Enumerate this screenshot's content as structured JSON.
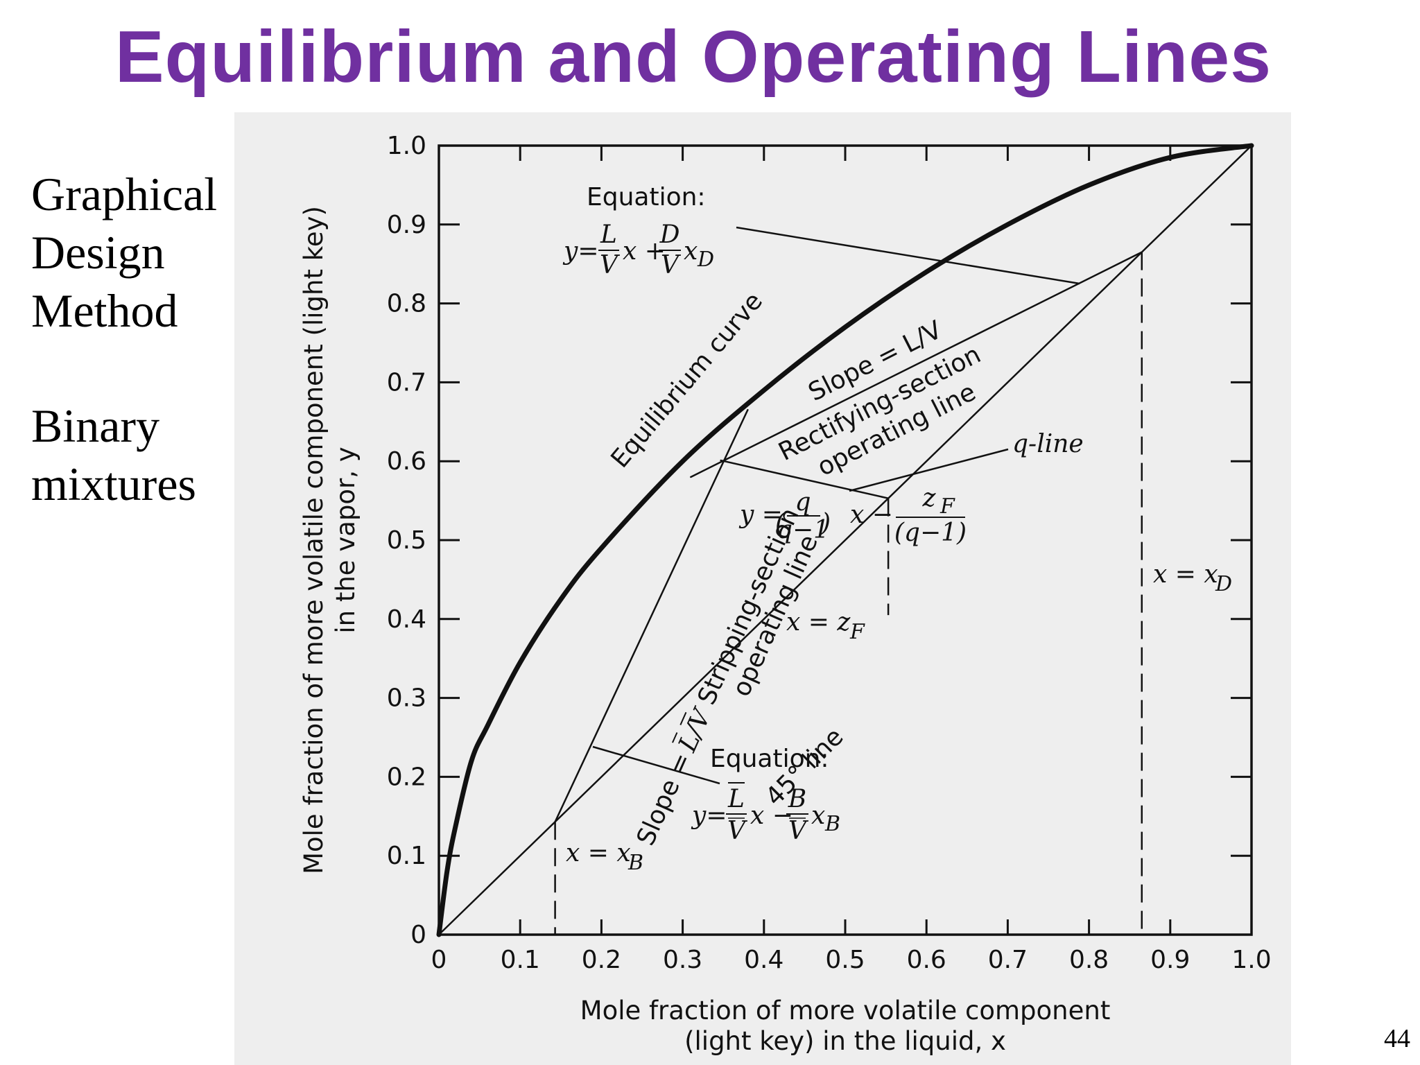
{
  "slide": {
    "title": "Equilibrium and Operating Lines",
    "side_text_1": [
      "Graphical",
      "Design",
      "Method"
    ],
    "side_text_2": [
      "Binary",
      "mixtures"
    ],
    "page_number": "44"
  },
  "chart_data": {
    "type": "line",
    "xlabel": [
      "Mole fraction of more volatile component",
      "(light key) in the liquid, x"
    ],
    "ylabel": [
      "Mole fraction of more volatile component (light key)",
      "in the vapor, y"
    ],
    "xlim": [
      0,
      1.0
    ],
    "ylim": [
      0,
      1.0
    ],
    "x_tick_labels": [
      "0",
      "0.1",
      "0.2",
      "0.3",
      "0.4",
      "0.5",
      "0.6",
      "0.7",
      "0.8",
      "0.9",
      "1.0"
    ],
    "y_tick_labels": [
      "0",
      "0.1",
      "0.2",
      "0.3",
      "0.4",
      "0.5",
      "0.6",
      "0.7",
      "0.8",
      "0.9",
      "1.0"
    ],
    "grid": false,
    "series": [
      {
        "key": "equilibrium",
        "x": [
          0,
          0.01,
          0.02,
          0.04,
          0.06,
          0.1,
          0.15,
          0.2,
          0.3,
          0.4,
          0.5,
          0.6,
          0.7,
          0.8,
          0.9,
          1.0
        ],
        "y": [
          0,
          0.08,
          0.135,
          0.22,
          0.265,
          0.345,
          0.425,
          0.49,
          0.6,
          0.69,
          0.77,
          0.84,
          0.9,
          0.95,
          0.985,
          1.0
        ]
      },
      {
        "key": "diagonal",
        "x": [
          0,
          1.0
        ],
        "y": [
          0,
          1.0
        ]
      },
      {
        "key": "rectifying",
        "x": [
          0.31,
          0.865
        ],
        "y": [
          0.58,
          0.865
        ]
      },
      {
        "key": "stripping",
        "x": [
          0.143,
          0.38
        ],
        "y": [
          0.143,
          0.665
        ]
      },
      {
        "key": "q_line",
        "x": [
          0.347,
          0.553
        ],
        "y": [
          0.601,
          0.553
        ]
      }
    ],
    "reference_lines": [
      {
        "key": "x_B",
        "x": 0.143,
        "y_top": 0.143
      },
      {
        "key": "z_F",
        "x": 0.553,
        "y_top": 0.553,
        "y_bottom": 0.405
      },
      {
        "key": "x_D",
        "x": 0.865,
        "y_top": 0.865
      }
    ],
    "annotations": {
      "equation_top_title": "Equation:",
      "equation_bottom_title": "Equation:",
      "equilibrium_curve": "Equilibrium curve",
      "slope_lv": "Slope = L/V",
      "rectifying_1": "Rectifying-section",
      "rectifying_2": "operating line",
      "q_line": "q-line",
      "stripping_1": "Stripping-section",
      "stripping_2": "operating line",
      "slope_lv_bar": "Slope = ",
      "line_45": "45° line",
      "x_eq_xb": "x = x",
      "x_eq_zf": "x = z",
      "x_eq_xd": "x = x"
    }
  }
}
